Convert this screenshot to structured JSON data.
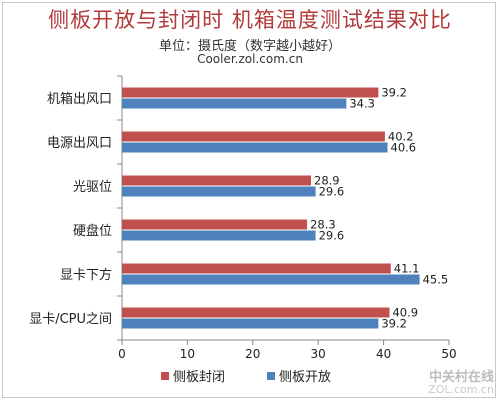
{
  "chart_data": {
    "type": "bar",
    "orientation": "horizontal",
    "title": "侧板开放与封闭时 机箱温度测试结果对比",
    "subtitle": "单位：摄氏度（数字越小越好）",
    "source": "Cooler.zol.com.cn",
    "categories": [
      "机箱出风口",
      "电源出风口",
      "光驱位",
      "硬盘位",
      "显卡下方",
      "显卡/CPU之间"
    ],
    "series": [
      {
        "name": "侧板封闭",
        "color": "#c0504d",
        "values": [
          39.2,
          40.2,
          28.9,
          28.3,
          41.1,
          40.9
        ]
      },
      {
        "name": "侧板开放",
        "color": "#4f81bd",
        "values": [
          34.3,
          40.6,
          29.6,
          29.6,
          45.5,
          39.2
        ]
      }
    ],
    "xlim": [
      0,
      50
    ],
    "xticks": [
      "0",
      "10",
      "20",
      "30",
      "40",
      "50"
    ],
    "grid": false,
    "legend_position": "bottom"
  },
  "watermark": {
    "line1": "中关村在线",
    "line2": "ZOL.com.cn"
  }
}
